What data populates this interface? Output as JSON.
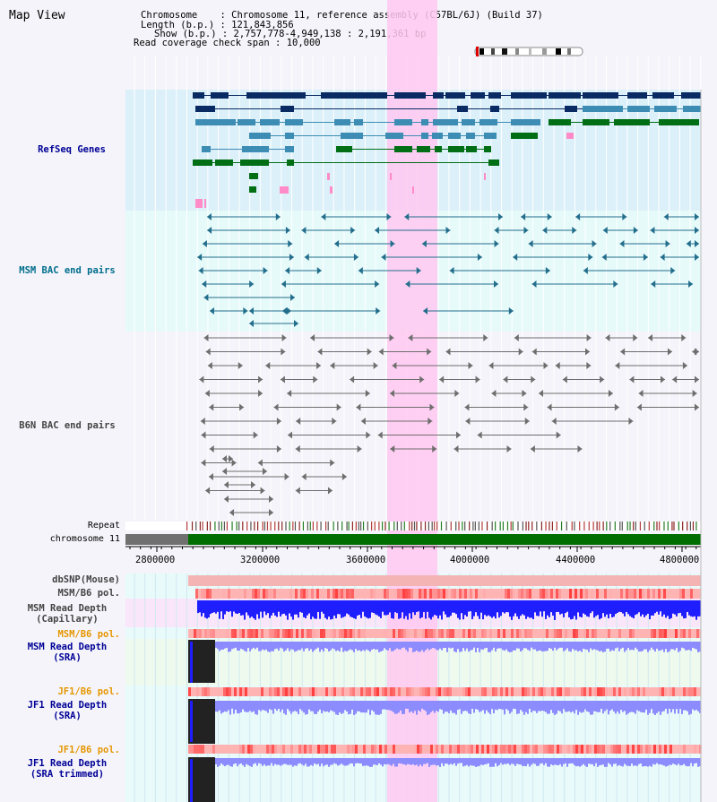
{
  "title": "Map View",
  "info": {
    "chromosome_key": "Chromosome",
    "chromosome_val": ": Chromosome 11, reference assembly (C57BL/6J) (Build 37)",
    "length_key": "Length (b.p.)",
    "length_val": ": 121,843,856",
    "show_key": "Show (b.p.)",
    "show_val": ": 2,757,778-4,949,138 : 2,191,361 bp",
    "coverage_key": "Read coverage check span",
    "coverage_val": ": 10,000"
  },
  "tracks": {
    "refseq": "RefSeq Genes",
    "msm_bac": "MSM BAC end pairs",
    "b6n_bac": "B6N BAC end pairs",
    "repeat": "Repeat",
    "chromosome": "chromosome 11",
    "dbsnp": "dbSNP(Mouse)",
    "msm_b6_pol": "MSM/B6 pol.",
    "msm_read_depth_cap_1": "MSM Read Depth",
    "msm_read_depth_cap_2": "(Capillary)",
    "msm_b6_pol_2": "MSM/B6 pol.",
    "msm_read_depth_sra_1": "MSM Read Depth",
    "msm_read_depth_sra_2": "(SRA)",
    "jf1_b6_pol": "JF1/B6 pol.",
    "jf1_read_depth_sra_1": "JF1 Read Depth",
    "jf1_read_depth_sra_2": "(SRA)",
    "jf1_b6_pol_2": "JF1/B6 pol.",
    "jf1_read_depth_trim_1": "JF1 Read Depth",
    "jf1_read_depth_trim_2": "(SRA trimmed)"
  },
  "axis": {
    "ticks": [
      "2800000",
      "3200000",
      "3600000",
      "4000000",
      "4400000",
      "4800000"
    ]
  },
  "colors": {
    "refseq_bg": "#dcf0fa",
    "bac_bg": "#e6fafa",
    "b6n_bg": "#f4f4fa",
    "highlight": "#ffc8f0",
    "gene_dark": "#0a2a64",
    "gene_mid": "#3c8cb4",
    "gene_green": "#006e14",
    "gene_pink": "#ff8cc8",
    "msm_bac": "#236e8c",
    "b6n_bac": "#6e6e6e",
    "chrom_green": "#006e00",
    "label_blue": "#000096",
    "label_teal": "#006e8c",
    "label_orange": "#e69600",
    "label_gray": "#444444",
    "depth_blue": "#1e1eff",
    "depth_light": "#8c8cff",
    "pol_red": "#ff3c3c"
  }
}
